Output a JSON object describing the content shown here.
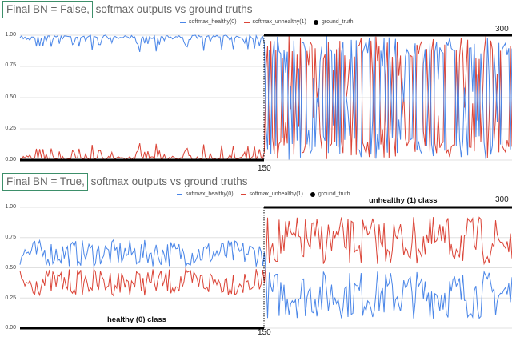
{
  "chart_data": [
    {
      "type": "line",
      "title_boxed": "Final BN = False,",
      "title_rest": " softmax outputs vs ground truths",
      "xlabel": "",
      "ylabel": "",
      "ylim": [
        0,
        1
      ],
      "yticks": [
        "1.00",
        "0.75",
        "0.50",
        "0.25",
        "0.00"
      ],
      "x_range": [
        0,
        300
      ],
      "x_annotations": [
        "150",
        "300"
      ],
      "grid": true,
      "legend_position": "top",
      "legend": [
        "softmax_healthy(0)",
        "softmax_unhealthy(1)",
        "ground_truth"
      ],
      "series": [
        {
          "name": "softmax_healthy(0)",
          "color": "#4a86e8",
          "description": "x 0-150: ~0.95-1.00; x 150-300: oscillates between ~0.0 and ~1.0"
        },
        {
          "name": "softmax_unhealthy(1)",
          "color": "#db4437",
          "description": "x 0-150: ~0.00-0.10; x 150-300: oscillates between ~0.0 and ~1.0 (complement of healthy)"
        },
        {
          "name": "ground_truth",
          "color": "#000000",
          "segments": [
            {
              "x": [
                0,
                150
              ],
              "y": 0
            },
            {
              "x": [
                150,
                300
              ],
              "y": 1
            }
          ]
        }
      ]
    },
    {
      "type": "line",
      "title_boxed": "Final BN = True,",
      "title_rest": " softmax outputs vs ground truths",
      "xlabel": "",
      "ylabel": "",
      "ylim": [
        0,
        1
      ],
      "yticks": [
        "1.00",
        "0.75",
        "0.50",
        "0.25",
        "0.00"
      ],
      "x_range": [
        0,
        300
      ],
      "x_annotations": [
        "150",
        "300"
      ],
      "annotations": [
        "healthy (0) class",
        "unhealthy (1) class"
      ],
      "grid": true,
      "legend_position": "top",
      "legend": [
        "softmax_healthy(0)",
        "softmax_unhealthy(1)",
        "ground_truth"
      ],
      "series": [
        {
          "name": "softmax_healthy(0)",
          "color": "#4a86e8",
          "description": "x 0-150: ~0.50-0.73 (mean ~0.62); x 150-300: ~0.05-0.50 (mean ~0.30)"
        },
        {
          "name": "softmax_unhealthy(1)",
          "color": "#db4437",
          "description": "x 0-150: ~0.27-0.50 (mean ~0.38); x 150-300: ~0.50-0.95 (mean ~0.70)"
        },
        {
          "name": "ground_truth",
          "color": "#000000",
          "segments": [
            {
              "x": [
                0,
                150
              ],
              "y": 0
            },
            {
              "x": [
                150,
                300
              ],
              "y": 1
            }
          ]
        }
      ]
    }
  ],
  "colors": {
    "healthy": "#4a86e8",
    "unhealthy": "#db4437",
    "truth": "#000000",
    "grid": "#e0e0e0",
    "title_box": "#3d8f6a"
  }
}
